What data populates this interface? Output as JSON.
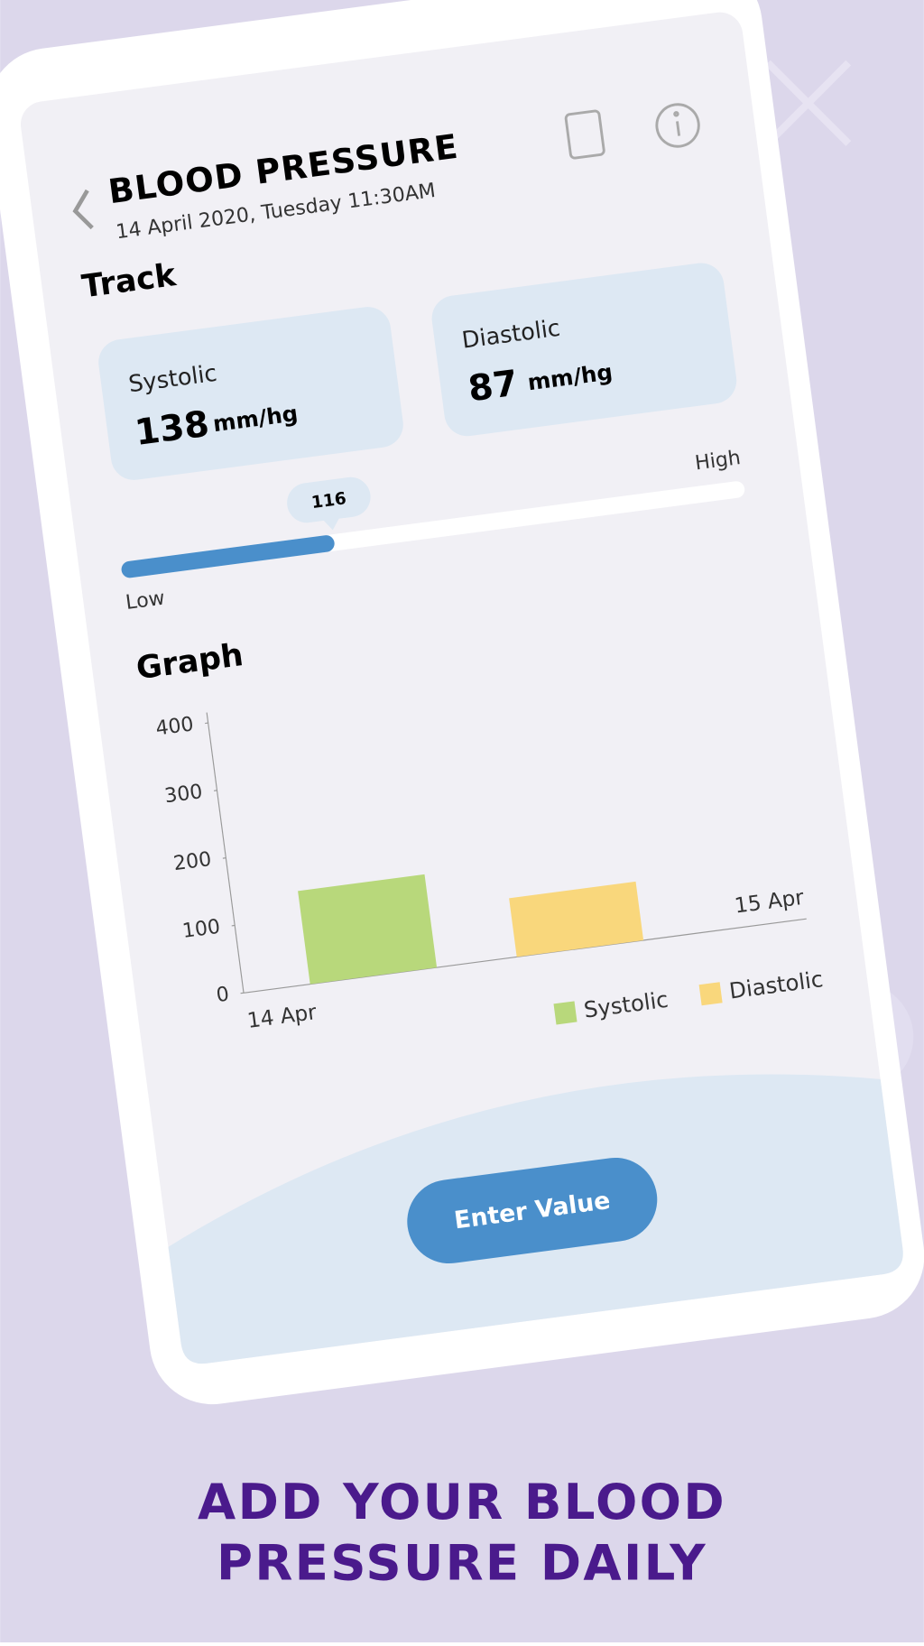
{
  "header": {
    "title": "BLOOD PRESSURE",
    "date": "14 April 2020, Tuesday  11:30AM"
  },
  "track": {
    "title": "Track",
    "cards": [
      {
        "label": "Systolic",
        "value": 138,
        "unit": "mm/hg"
      },
      {
        "label": "Diastolic",
        "value": 87,
        "unit": "mm/hg"
      }
    ],
    "slider": {
      "value": 116,
      "low_label": "Low",
      "high_label": "High"
    }
  },
  "graph": {
    "type": "bar",
    "title": "Graph",
    "x_labels": [
      "14 Apr",
      "15 Apr"
    ],
    "series": [
      {
        "name": "Systolic",
        "color": "#b8d87b",
        "values": [
          138
        ]
      },
      {
        "name": "Diastolic",
        "color": "#f9d77c",
        "values": [
          87
        ]
      }
    ],
    "ylim": [
      0,
      400
    ],
    "yticks": [
      0,
      100,
      200,
      300,
      400
    ]
  },
  "button": {
    "label": "Enter Value"
  },
  "headline": [
    "ADD YOUR BLOOD",
    "PRESSURE DAILY"
  ]
}
